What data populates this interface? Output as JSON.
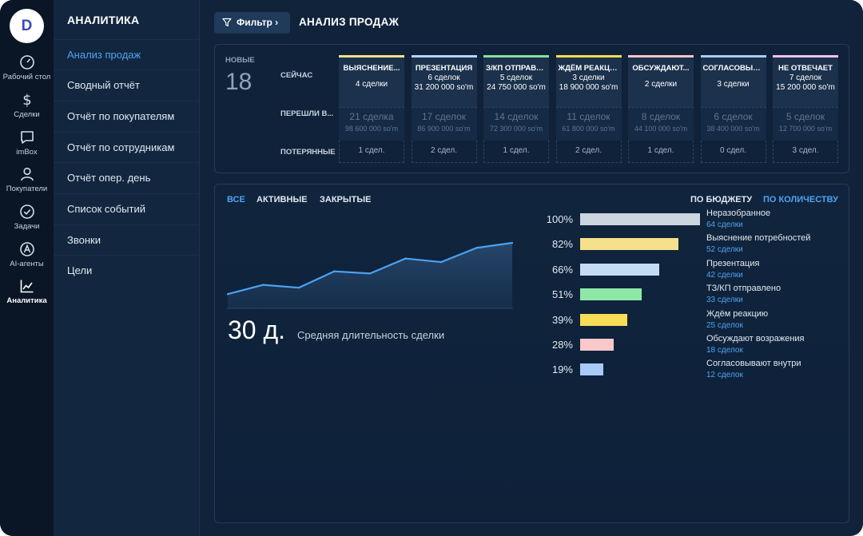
{
  "app": {
    "logo_letter": "D"
  },
  "rail": {
    "items": [
      {
        "label": "Рабочий стол",
        "icon": "gauge-icon"
      },
      {
        "label": "Сделки",
        "icon": "dollar-icon"
      },
      {
        "label": "imBox",
        "icon": "chat-icon"
      },
      {
        "label": "Покупатели",
        "icon": "user-icon"
      },
      {
        "label": "Задачи",
        "icon": "check-circle-icon"
      },
      {
        "label": "AI-агенты",
        "icon": "ai-agent-icon"
      },
      {
        "label": "Аналитика",
        "icon": "line-chart-icon",
        "active": true
      }
    ]
  },
  "subnav": {
    "title": "АНАЛИТИКА",
    "items": [
      {
        "label": "Анализ продаж",
        "active": true
      },
      {
        "label": "Сводный отчёт"
      },
      {
        "label": "Отчёт по покупателям"
      },
      {
        "label": "Отчёт по сотрудникам"
      },
      {
        "label": "Отчёт опер. день"
      },
      {
        "label": "Список событий"
      },
      {
        "label": "Звонки"
      },
      {
        "label": "Цели"
      }
    ]
  },
  "header": {
    "filter_label": "Фильтр ›",
    "title": "АНАЛИЗ ПРОДАЖ"
  },
  "pipeline": {
    "new_label": "НОВЫЕ",
    "new_count": "18",
    "row_now": "СЕЙЧАС",
    "row_moved": "ПЕРЕШЛИ В...",
    "row_lost": "ПОТЕРЯННЫЕ",
    "stages": [
      {
        "name": "ВЫЯСНЕНИЕ...",
        "color": "#f1e08a",
        "now_count": "4 сделки",
        "now_sum": "",
        "moved_count": "21 сделка",
        "moved_sum": "98 600 000 so'm",
        "lost": "1 сдел."
      },
      {
        "name": "ПРЕЗЕНТАЦИЯ",
        "color": "#b9d3f2",
        "now_count": "6 сделок",
        "now_sum": "31 200 000 so'm",
        "moved_count": "17 сделок",
        "moved_sum": "86 900 000 so'm",
        "lost": "2 сдел."
      },
      {
        "name": "З/КП ОТПРАВЛЕН",
        "color": "#86e0a0",
        "now_count": "5 сделок",
        "now_sum": "24 750 000 so'm",
        "moved_count": "14 сделок",
        "moved_sum": "72 300 000 so'm",
        "lost": "1 сдел."
      },
      {
        "name": "ЖДЁМ РЕАКЦИЮ",
        "color": "#f5dc4e",
        "now_count": "3 сделки",
        "now_sum": "18 900 000 so'm",
        "moved_count": "11 сделок",
        "moved_sum": "61 800 000 so'm",
        "lost": "2 сдел."
      },
      {
        "name": "ОБСУЖДАЮТ...",
        "color": "#f6c5c8",
        "now_count": "2 сделки",
        "now_sum": "",
        "moved_count": "8 сделок",
        "moved_sum": "44 100 000 so'm",
        "lost": "1 сдел."
      },
      {
        "name": "СОГЛАСОВЫВАЮ...",
        "color": "#a9cdf6",
        "now_count": "3 сделки",
        "now_sum": "",
        "moved_count": "6 сделок",
        "moved_sum": "38 400 000 so'm",
        "lost": "0 сдел."
      },
      {
        "name": "НЕ ОТВЕЧАЕТ",
        "color": "#f0c0ee",
        "now_count": "7 сделок",
        "now_sum": "15 200 000 so'm",
        "moved_count": "5 сделок",
        "moved_sum": "12 700 000 so'm",
        "lost": "3 сдел."
      }
    ]
  },
  "tabs": {
    "all": "ВСЕ",
    "active": "АКТИВНЫЕ",
    "closed": "ЗАКРЫТЫЕ",
    "by_budget": "ПО БЮДЖЕТУ",
    "by_count": "ПО КОЛИЧЕСТВУ"
  },
  "metric": {
    "value": "30 д.",
    "caption": "Средняя длительность сделки"
  },
  "funnel": [
    {
      "pct": "100%",
      "value": 100,
      "name": "Неразобранное",
      "sub": "64 сделки",
      "color": "#ccd5e0"
    },
    {
      "pct": "82%",
      "value": 82,
      "name": "Выяснение потребностей",
      "sub": "52 сделки",
      "color": "#f5e08c"
    },
    {
      "pct": "66%",
      "value": 66,
      "name": "Презентация",
      "sub": "42 сделки",
      "color": "#c4dbf6"
    },
    {
      "pct": "51%",
      "value": 51,
      "name": "ТЗ/КП отправлено",
      "sub": "33 сделки",
      "color": "#8de8a6"
    },
    {
      "pct": "39%",
      "value": 39,
      "name": "Ждём реакцию",
      "sub": "25 сделок",
      "color": "#f6de56"
    },
    {
      "pct": "28%",
      "value": 28,
      "name": "Обсуждают возражения",
      "sub": "18 сделок",
      "color": "#f8c8cb"
    },
    {
      "pct": "19%",
      "value": 19,
      "name": "Согласовывают внутри",
      "sub": "12 сделок",
      "color": "#a7cbf6"
    }
  ],
  "chart_data": {
    "type": "area",
    "x": [
      1,
      2,
      3,
      4,
      5,
      6,
      7,
      8,
      9
    ],
    "values": [
      20,
      33,
      29,
      52,
      49,
      70,
      65,
      85,
      92
    ],
    "title": "",
    "xlabel": "",
    "ylabel": "",
    "ylim": [
      0,
      110
    ],
    "grid": false,
    "color": "#4aa3f3"
  }
}
